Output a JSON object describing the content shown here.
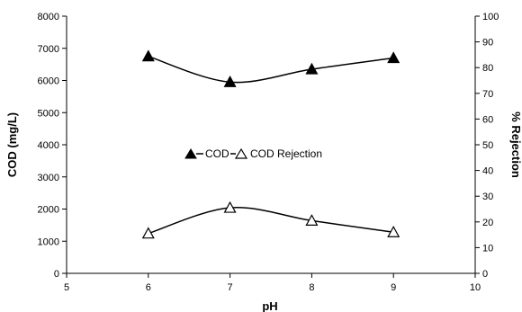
{
  "chart_data": {
    "type": "line",
    "xlabel": "pH",
    "ylabel_left": "COD (mg/L)",
    "ylabel_right": "% Rejection",
    "xlim": [
      5,
      10
    ],
    "ylim_left": [
      0,
      8000
    ],
    "ylim_right": [
      0,
      100
    ],
    "x_ticks": [
      "5",
      "6",
      "7",
      "8",
      "9",
      "10"
    ],
    "y_left_ticks": [
      "0",
      "1000",
      "2000",
      "3000",
      "4000",
      "5000",
      "6000",
      "7000",
      "8000"
    ],
    "y_right_ticks": [
      "0",
      "10",
      "20",
      "30",
      "40",
      "50",
      "60",
      "70",
      "80",
      "90",
      "100"
    ],
    "grid": false,
    "legend_position": "center",
    "series": [
      {
        "name": "COD",
        "axis": "left",
        "marker": "filled-triangle",
        "x": [
          6,
          7,
          8,
          9
        ],
        "y": [
          6750,
          5950,
          6350,
          6700
        ]
      },
      {
        "name": "COD Rejection",
        "axis": "right",
        "marker": "open-triangle",
        "x": [
          6,
          7,
          8,
          9
        ],
        "y": [
          15.5,
          25.5,
          20.5,
          16
        ]
      }
    ]
  }
}
